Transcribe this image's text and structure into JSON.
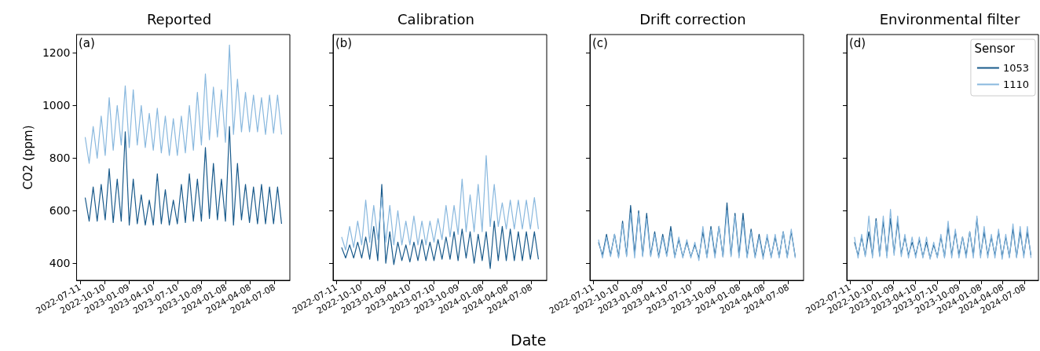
{
  "chart_data": [
    {
      "type": "line",
      "title": "Reported",
      "annotations": [
        "(a)"
      ],
      "ylabel": "CO2 (ppm)",
      "x": [
        "2022-07-30",
        "2022-08-14",
        "2022-08-29",
        "2022-09-13",
        "2022-09-28",
        "2022-10-13",
        "2022-10-28",
        "2022-11-12",
        "2022-11-27",
        "2022-12-12",
        "2022-12-27",
        "2023-01-11",
        "2023-01-26",
        "2023-02-10",
        "2023-02-25",
        "2023-03-12",
        "2023-03-27",
        "2023-04-11",
        "2023-04-26",
        "2023-05-11",
        "2023-05-26",
        "2023-06-10",
        "2023-06-25",
        "2023-07-10",
        "2023-07-25",
        "2023-08-09",
        "2023-08-24",
        "2023-09-08",
        "2023-09-23",
        "2023-10-08",
        "2023-10-23",
        "2023-11-07",
        "2023-11-22",
        "2023-12-07",
        "2023-12-22",
        "2024-01-06",
        "2024-01-21",
        "2024-02-05",
        "2024-02-20",
        "2024-03-06",
        "2024-03-21",
        "2024-04-05",
        "2024-04-20",
        "2024-05-05",
        "2024-05-20",
        "2024-06-04",
        "2024-06-19",
        "2024-07-04",
        "2024-07-19",
        "2024-08-03"
      ],
      "xlim": [
        "2022-06-28",
        "2024-09-03"
      ],
      "xticks": [
        "2022-07-11",
        "2022-10-10",
        "2023-01-09",
        "2023-04-10",
        "2023-07-10",
        "2023-10-09",
        "2024-01-08",
        "2024-04-08",
        "2024-07-08"
      ],
      "ylim": [
        335,
        1270
      ],
      "yticks": [
        400,
        600,
        800,
        1000,
        1200
      ],
      "series": [
        {
          "color": "#195a8b",
          "values": [
            650,
            560,
            690,
            560,
            700,
            565,
            760,
            555,
            720,
            560,
            900,
            545,
            720,
            550,
            660,
            545,
            640,
            545,
            740,
            550,
            680,
            545,
            640,
            550,
            700,
            555,
            740,
            560,
            720,
            560,
            840,
            570,
            780,
            565,
            720,
            560,
            920,
            545,
            780,
            565,
            700,
            555,
            690,
            550,
            700,
            550,
            690,
            550,
            690,
            550
          ]
        },
        {
          "color": "#89b8de",
          "values": [
            880,
            780,
            920,
            800,
            960,
            810,
            1030,
            830,
            1000,
            850,
            1075,
            840,
            1060,
            850,
            1000,
            840,
            970,
            830,
            990,
            820,
            960,
            810,
            950,
            810,
            960,
            820,
            1000,
            830,
            1050,
            850,
            1120,
            870,
            1070,
            880,
            1060,
            860,
            1230,
            890,
            1100,
            900,
            1050,
            900,
            1040,
            900,
            1030,
            890,
            1040,
            895,
            1040,
            890
          ]
        }
      ]
    },
    {
      "type": "line",
      "title": "Calibration",
      "annotations": [
        "(b)"
      ],
      "xlabel": "Date",
      "tick_labels": "x",
      "x": [
        "2022-07-30",
        "2022-08-14",
        "2022-08-29",
        "2022-09-13",
        "2022-09-28",
        "2022-10-13",
        "2022-10-28",
        "2022-11-12",
        "2022-11-27",
        "2022-12-12",
        "2022-12-27",
        "2023-01-11",
        "2023-01-26",
        "2023-02-10",
        "2023-02-25",
        "2023-03-12",
        "2023-03-27",
        "2023-04-11",
        "2023-04-26",
        "2023-05-11",
        "2023-05-26",
        "2023-06-10",
        "2023-06-25",
        "2023-07-10",
        "2023-07-25",
        "2023-08-09",
        "2023-08-24",
        "2023-09-08",
        "2023-09-23",
        "2023-10-08",
        "2023-10-23",
        "2023-11-07",
        "2023-11-22",
        "2023-12-07",
        "2023-12-22",
        "2024-01-06",
        "2024-01-21",
        "2024-02-05",
        "2024-02-20",
        "2024-03-06",
        "2024-03-21",
        "2024-04-05",
        "2024-04-20",
        "2024-05-05",
        "2024-05-20",
        "2024-06-04",
        "2024-06-19",
        "2024-07-04",
        "2024-07-19",
        "2024-08-03"
      ],
      "xlim": [
        "2022-06-28",
        "2024-09-03"
      ],
      "xticks": [
        "2022-07-11",
        "2022-10-10",
        "2023-01-09",
        "2023-04-10",
        "2023-07-10",
        "2023-10-09",
        "2024-01-08",
        "2024-04-08",
        "2024-07-08"
      ],
      "ylim": [
        335,
        1270
      ],
      "yticks": [
        400,
        600,
        800,
        1000,
        1200
      ],
      "series": [
        {
          "color": "#195a8b",
          "values": [
            460,
            420,
            470,
            420,
            480,
            420,
            500,
            415,
            540,
            410,
            700,
            400,
            520,
            395,
            480,
            410,
            470,
            405,
            480,
            410,
            490,
            410,
            480,
            410,
            490,
            415,
            500,
            415,
            520,
            410,
            530,
            420,
            520,
            400,
            510,
            410,
            520,
            380,
            560,
            410,
            540,
            410,
            530,
            410,
            520,
            410,
            520,
            415,
            520,
            415
          ]
        },
        {
          "color": "#89b8de",
          "values": [
            500,
            450,
            540,
            460,
            560,
            470,
            640,
            480,
            620,
            490,
            650,
            480,
            620,
            470,
            600,
            470,
            560,
            470,
            580,
            470,
            560,
            470,
            560,
            480,
            570,
            490,
            620,
            500,
            620,
            510,
            720,
            520,
            660,
            520,
            700,
            520,
            810,
            540,
            700,
            540,
            630,
            530,
            640,
            530,
            640,
            530,
            640,
            530,
            650,
            530
          ]
        }
      ]
    },
    {
      "type": "line",
      "title": "Drift correction",
      "annotations": [
        "(c)"
      ],
      "tick_labels": "x",
      "x": [
        "2022-07-30",
        "2022-08-14",
        "2022-08-29",
        "2022-09-13",
        "2022-09-28",
        "2022-10-13",
        "2022-10-28",
        "2022-11-12",
        "2022-11-27",
        "2022-12-12",
        "2022-12-27",
        "2023-01-11",
        "2023-01-26",
        "2023-02-10",
        "2023-02-25",
        "2023-03-12",
        "2023-03-27",
        "2023-04-11",
        "2023-04-26",
        "2023-05-11",
        "2023-05-26",
        "2023-06-10",
        "2023-06-25",
        "2023-07-10",
        "2023-07-25",
        "2023-08-09",
        "2023-08-24",
        "2023-09-08",
        "2023-09-23",
        "2023-10-08",
        "2023-10-23",
        "2023-11-07",
        "2023-11-22",
        "2023-12-07",
        "2023-12-22",
        "2024-01-06",
        "2024-01-21",
        "2024-02-05",
        "2024-02-20",
        "2024-03-06",
        "2024-03-21",
        "2024-04-05",
        "2024-04-20",
        "2024-05-05",
        "2024-05-20",
        "2024-06-04",
        "2024-06-19",
        "2024-07-04",
        "2024-07-19",
        "2024-08-03"
      ],
      "xlim": [
        "2022-06-28",
        "2024-09-03"
      ],
      "xticks": [
        "2022-07-11",
        "2022-10-10",
        "2023-01-09",
        "2023-04-10",
        "2023-07-10",
        "2023-10-09",
        "2024-01-08",
        "2024-04-08",
        "2024-07-08"
      ],
      "ylim": [
        335,
        1270
      ],
      "yticks": [
        400,
        600,
        800,
        1000,
        1200
      ],
      "series": [
        {
          "color": "#195a8b",
          "values": [
            480,
            430,
            510,
            430,
            510,
            425,
            560,
            430,
            620,
            435,
            600,
            430,
            590,
            430,
            520,
            425,
            510,
            430,
            540,
            425,
            490,
            425,
            480,
            425,
            470,
            420,
            520,
            425,
            540,
            430,
            540,
            425,
            630,
            430,
            590,
            430,
            590,
            425,
            530,
            425,
            510,
            425,
            500,
            425,
            500,
            425,
            520,
            425,
            520,
            425
          ]
        },
        {
          "color": "#89b8de",
          "values": [
            490,
            420,
            500,
            425,
            510,
            420,
            550,
            425,
            590,
            420,
            590,
            425,
            570,
            425,
            510,
            420,
            500,
            425,
            520,
            420,
            500,
            420,
            490,
            420,
            480,
            410,
            540,
            420,
            530,
            420,
            540,
            425,
            600,
            425,
            580,
            420,
            560,
            420,
            520,
            420,
            500,
            415,
            510,
            420,
            510,
            420,
            520,
            420,
            530,
            420
          ]
        }
      ]
    },
    {
      "type": "line",
      "title": "Environmental filter",
      "annotations": [
        "(d)"
      ],
      "tick_labels": "x",
      "legend": "top right",
      "legend_title": "Sensor",
      "x": [
        "2022-07-30",
        "2022-08-14",
        "2022-08-29",
        "2022-09-13",
        "2022-09-28",
        "2022-10-13",
        "2022-10-28",
        "2022-11-12",
        "2022-11-27",
        "2022-12-12",
        "2022-12-27",
        "2023-01-11",
        "2023-01-26",
        "2023-02-10",
        "2023-02-25",
        "2023-03-12",
        "2023-03-27",
        "2023-04-11",
        "2023-04-26",
        "2023-05-11",
        "2023-05-26",
        "2023-06-10",
        "2023-06-25",
        "2023-07-10",
        "2023-07-25",
        "2023-08-09",
        "2023-08-24",
        "2023-09-08",
        "2023-09-23",
        "2023-10-08",
        "2023-10-23",
        "2023-11-07",
        "2023-11-22",
        "2023-12-07",
        "2023-12-22",
        "2024-01-06",
        "2024-01-21",
        "2024-02-05",
        "2024-02-20",
        "2024-03-06",
        "2024-03-21",
        "2024-04-05",
        "2024-04-20",
        "2024-05-05",
        "2024-05-20",
        "2024-06-04",
        "2024-06-19",
        "2024-07-04",
        "2024-07-19",
        "2024-08-03"
      ],
      "xlim": [
        "2022-06-28",
        "2024-09-03"
      ],
      "xticks": [
        "2022-07-11",
        "2022-10-10",
        "2023-01-09",
        "2023-04-10",
        "2023-07-10",
        "2023-10-09",
        "2024-01-08",
        "2024-04-08",
        "2024-07-08"
      ],
      "ylim": [
        335,
        1270
      ],
      "yticks": [
        400,
        600,
        800,
        1000,
        1200
      ],
      "series": [
        {
          "name": "1053",
          "color": "#195a8b",
          "values": [
            480,
            430,
            500,
            430,
            520,
            430,
            570,
            430,
            560,
            430,
            570,
            440,
            560,
            435,
            500,
            430,
            480,
            430,
            490,
            425,
            480,
            420,
            470,
            425,
            500,
            425,
            540,
            430,
            520,
            430,
            500,
            430,
            520,
            430,
            570,
            430,
            520,
            430,
            500,
            430,
            520,
            425,
            500,
            425,
            530,
            425,
            520,
            430,
            520,
            430
          ]
        },
        {
          "name": "1110",
          "color": "#89b8de",
          "values": [
            500,
            420,
            510,
            425,
            580,
            420,
            560,
            425,
            580,
            420,
            605,
            430,
            580,
            425,
            510,
            420,
            500,
            420,
            500,
            420,
            500,
            415,
            480,
            420,
            510,
            420,
            560,
            420,
            530,
            420,
            500,
            420,
            520,
            420,
            580,
            420,
            540,
            420,
            510,
            420,
            530,
            415,
            510,
            420,
            550,
            420,
            540,
            420,
            540,
            420
          ]
        }
      ]
    }
  ]
}
